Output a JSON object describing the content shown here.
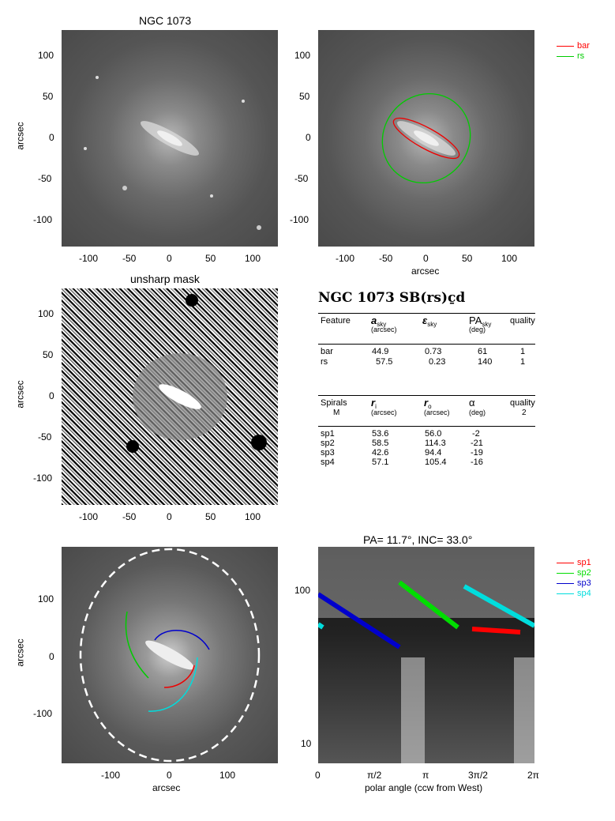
{
  "panel1": {
    "title": "NGC 1073",
    "ylabel": "arcsec",
    "xticks": [
      "-100",
      "-50",
      "0",
      "50",
      "100"
    ],
    "yticks": [
      "100",
      "50",
      "0",
      "-50",
      "-100"
    ]
  },
  "panel2": {
    "xlabel": "arcsec",
    "xticks": [
      "-100",
      "-50",
      "0",
      "50",
      "100"
    ],
    "yticks": [
      "100",
      "50",
      "0",
      "-50",
      "-100"
    ],
    "legend": [
      {
        "label": "bar",
        "color": "#ff0000"
      },
      {
        "label": "rs",
        "color": "#00cc00"
      }
    ]
  },
  "panel3": {
    "title": "unsharp mask",
    "ylabel": "arcsec",
    "xticks": [
      "-100",
      "-50",
      "0",
      "50",
      "100"
    ],
    "yticks": [
      "100",
      "50",
      "0",
      "-50",
      "-100"
    ]
  },
  "table": {
    "title": "NGC 1073  SB(rs)c̱d",
    "feature_header": [
      "Feature",
      "a",
      "sky",
      "(arcsec)",
      "ε",
      "sky",
      "PA",
      "sky",
      "(deg)",
      "quality"
    ],
    "features": [
      {
        "name": "bar",
        "a": "44.9",
        "e": "0.73",
        "pa": "61",
        "q": "1"
      },
      {
        "name": "rs",
        "a": "57.5",
        "e": "0.23",
        "pa": "140",
        "q": "1"
      }
    ],
    "spiral_header": [
      "Spirals",
      "M",
      "r",
      "i",
      "(arcsec)",
      "r",
      "o",
      "(arcsec)",
      "α",
      "(deg)",
      "quality",
      "2"
    ],
    "spirals": [
      {
        "name": "sp1",
        "ri": "53.6",
        "ro": "56.0",
        "alpha": "-2"
      },
      {
        "name": "sp2",
        "ri": "58.5",
        "ro": "114.3",
        "alpha": "-21"
      },
      {
        "name": "sp3",
        "ri": "42.6",
        "ro": "94.4",
        "alpha": "-19"
      },
      {
        "name": "sp4",
        "ri": "57.1",
        "ro": "105.4",
        "alpha": "-16"
      }
    ]
  },
  "panel5": {
    "xlabel": "arcsec",
    "ylabel": "arcsec",
    "xticks": [
      "-100",
      "0",
      "100"
    ],
    "yticks": [
      "100",
      "0",
      "-100"
    ]
  },
  "panel6": {
    "title": "PA=  11.7°, INC=  33.0°",
    "xlabel": "polar angle (ccw from West)",
    "xticks": [
      "0",
      "π/2",
      "π",
      "3π/2",
      "2π"
    ],
    "yticks": [
      "100",
      "10"
    ],
    "legend": [
      {
        "label": "sp1",
        "color": "#ff0000"
      },
      {
        "label": "sp2",
        "color": "#00dd00"
      },
      {
        "label": "sp3",
        "color": "#0000cc"
      },
      {
        "label": "sp4",
        "color": "#00dddd"
      }
    ]
  }
}
